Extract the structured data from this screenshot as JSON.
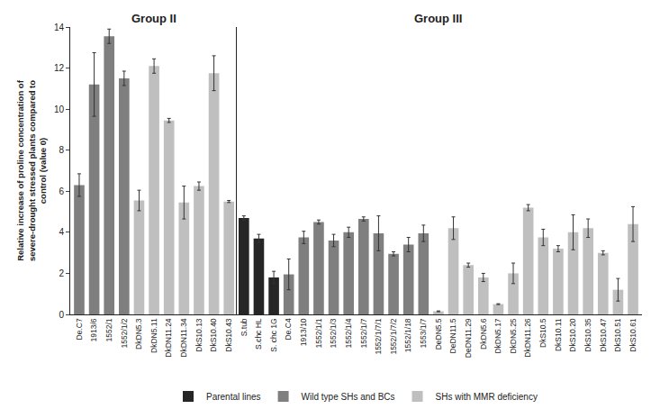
{
  "chart_data": {
    "type": "bar",
    "y_label": "Relative increase of proline concentration of severe-drought stressed plants compared to control (value 0)",
    "categories": [
      "De.C7",
      "1913/6",
      "1552/1",
      "1552/1/2",
      "DkDN5.3",
      "DkDN5.11",
      "DkDN11.24",
      "DkDN11.34",
      "DkS10.13",
      "DkS10.40",
      "DkS10.43",
      "S.tub",
      "S.chc HL",
      "S. chc 1G",
      "De.C4",
      "1913/10",
      "1552/1/1",
      "1552/1/3",
      "1552/1/4",
      "1552/1/7",
      "1552/1/7/1",
      "1552/1/7/2",
      "1552/1/18",
      "1553/1/7",
      "DeDN5.5",
      "DeDN11.5",
      "DeDN11.29",
      "DkDN5.6",
      "DkDN5.17",
      "DkDN5.25",
      "DkDN11.26",
      "DkS10.5",
      "DkS10.11",
      "DkS10.20",
      "DkS10.35",
      "DkS10.47",
      "DkS10.51",
      "DkS10.61"
    ],
    "groups": [
      {
        "label": "Group II",
        "count": 11
      },
      {
        "label": "Group III",
        "count": 27
      }
    ],
    "series": [
      {
        "name": "Parental lines",
        "color": "#262626",
        "values": [
          null,
          null,
          null,
          null,
          null,
          null,
          null,
          null,
          null,
          null,
          null,
          4.7,
          3.7,
          1.8,
          null,
          null,
          null,
          null,
          null,
          null,
          null,
          null,
          null,
          null,
          null,
          null,
          null,
          null,
          null,
          null,
          null,
          null,
          null,
          null,
          null,
          null,
          null,
          null
        ],
        "errors": [
          null,
          null,
          null,
          null,
          null,
          null,
          null,
          null,
          null,
          null,
          null,
          0.1,
          0.2,
          0.3,
          null,
          null,
          null,
          null,
          null,
          null,
          null,
          null,
          null,
          null,
          null,
          null,
          null,
          null,
          null,
          null,
          null,
          null,
          null,
          null,
          null,
          null,
          null,
          null
        ]
      },
      {
        "name": "Wild type SHs and BCs",
        "color": "#7f7f7f",
        "values": [
          6.3,
          11.2,
          13.55,
          11.5,
          null,
          null,
          null,
          null,
          null,
          null,
          null,
          null,
          null,
          null,
          1.95,
          3.75,
          4.5,
          3.6,
          4.0,
          4.65,
          3.95,
          2.95,
          3.4,
          3.95,
          null,
          null,
          null,
          null,
          null,
          null,
          null,
          null,
          null,
          null,
          null,
          null,
          null,
          null
        ],
        "errors": [
          0.55,
          1.55,
          0.35,
          0.35,
          null,
          null,
          null,
          null,
          null,
          null,
          null,
          null,
          null,
          null,
          0.75,
          0.3,
          0.1,
          0.3,
          0.25,
          0.1,
          0.85,
          0.1,
          0.35,
          0.4,
          null,
          null,
          null,
          null,
          null,
          null,
          null,
          null,
          null,
          null,
          null,
          null,
          null,
          null
        ]
      },
      {
        "name": "SHs with MMR deficiency",
        "color": "#bfbfbf",
        "values": [
          null,
          null,
          null,
          null,
          5.55,
          12.1,
          9.45,
          5.45,
          6.25,
          11.75,
          5.5,
          null,
          null,
          null,
          null,
          null,
          null,
          null,
          null,
          null,
          null,
          null,
          null,
          null,
          0.15,
          4.2,
          2.4,
          1.8,
          0.5,
          2.0,
          5.2,
          3.75,
          3.2,
          4.0,
          4.2,
          3.0,
          1.2,
          4.4
        ],
        "errors": [
          null,
          null,
          null,
          null,
          0.5,
          0.35,
          0.1,
          0.8,
          0.2,
          0.85,
          0.05,
          null,
          null,
          null,
          null,
          null,
          null,
          null,
          null,
          null,
          null,
          null,
          null,
          null,
          0.02,
          0.55,
          0.1,
          0.2,
          0.02,
          0.5,
          0.15,
          0.4,
          0.15,
          0.85,
          0.45,
          0.1,
          0.55,
          0.85
        ]
      }
    ],
    "ylim": [
      0,
      14
    ],
    "yticks": [
      0,
      2,
      4,
      6,
      8,
      10,
      12,
      14
    ],
    "grid": false,
    "legend": "bottom"
  }
}
